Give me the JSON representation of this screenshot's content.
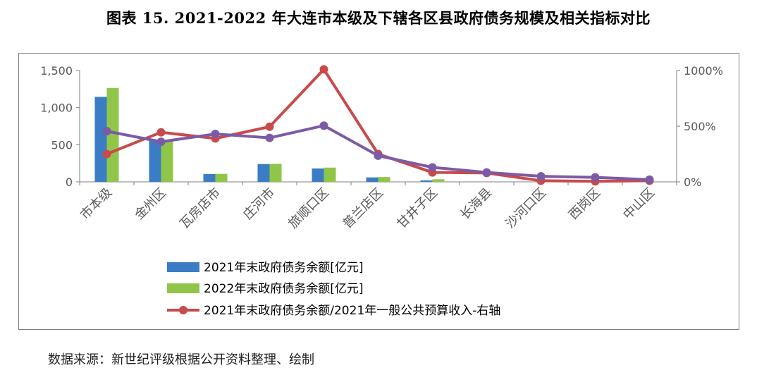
{
  "title": "图表 15. 2021-2022 年大连市本级及下辖各区县政府债务规模及相关指标对比",
  "source": "数据来源：新世纪评级根据公开资料整理、绘制",
  "chart_data": {
    "type": "bar",
    "categories": [
      "市本级",
      "金州区",
      "瓦房店市",
      "庄河市",
      "旅顺口区",
      "普兰店区",
      "甘井子区",
      "长海县",
      "沙河口区",
      "西岗区",
      "中山区"
    ],
    "series": [
      {
        "name": "2021年末政府债务余额[亿元]",
        "type": "bar",
        "axis": "left",
        "color": "#3b7dc4",
        "values": [
          1145,
          560,
          105,
          240,
          180,
          60,
          20,
          0,
          0,
          0,
          0
        ]
      },
      {
        "name": "2022年末政府债务余额[亿元]",
        "type": "bar",
        "axis": "left",
        "color": "#8fc64a",
        "values": [
          1265,
          570,
          108,
          242,
          192,
          65,
          35,
          0,
          0,
          0,
          0
        ]
      },
      {
        "name": "2021年末政府债务余额/2021年一般公共预算收入-右轴",
        "type": "line",
        "axis": "right",
        "color": "#c94a4a",
        "values": [
          250,
          445,
          390,
          495,
          1010,
          250,
          85,
          80,
          10,
          5,
          10
        ]
      },
      {
        "name": "",
        "type": "line",
        "axis": "right",
        "color": "#7c5ba6",
        "values": [
          455,
          360,
          430,
          395,
          505,
          235,
          130,
          85,
          50,
          40,
          20
        ]
      }
    ],
    "left_axis": {
      "ylim": [
        0,
        1500
      ],
      "ticks": [
        0,
        500,
        1000,
        1500
      ],
      "tick_labels": [
        "0",
        "500",
        "1,000",
        "1,500"
      ]
    },
    "right_axis": {
      "ylim": [
        0,
        1000
      ],
      "ticks": [
        0,
        500,
        1000
      ],
      "tick_labels": [
        "0%",
        "500%",
        "1000%"
      ]
    },
    "legend_placement": "bottom-center",
    "grid": false
  }
}
